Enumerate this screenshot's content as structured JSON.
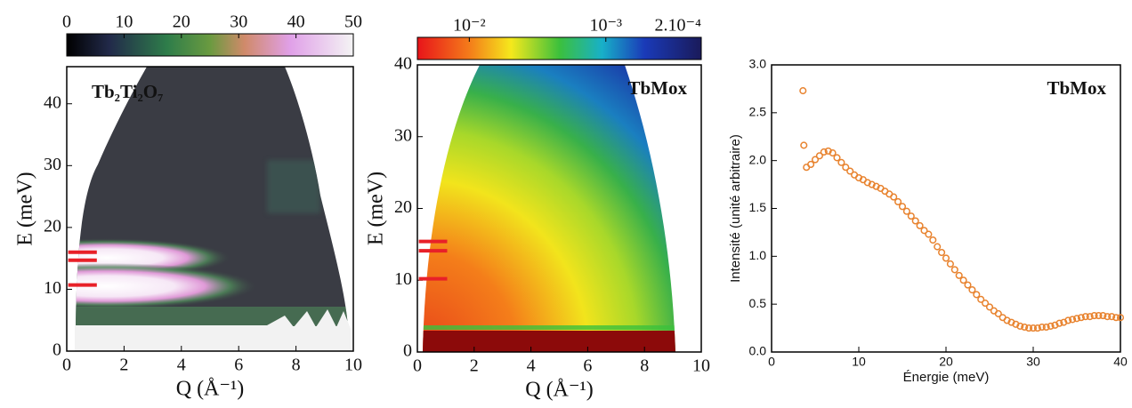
{
  "chart_data": [
    {
      "type": "heatmap",
      "annotation": "Tb₂Ti₂O₇",
      "annotation_color": "#b5121b",
      "xlabel": "Q (Å⁻¹)",
      "ylabel": "E (meV)",
      "xlim": [
        0,
        10
      ],
      "xticks": [
        0,
        2,
        4,
        6,
        8,
        10
      ],
      "ylim": [
        0,
        46
      ],
      "yticks": [
        0,
        10,
        20,
        30,
        40
      ],
      "colorbar": {
        "lim": [
          0,
          50
        ],
        "ticks": [
          0,
          10,
          20,
          30,
          40,
          50
        ],
        "log": false
      },
      "markers": [
        16,
        14.7,
        10.7
      ],
      "marker_color": "#e82028"
    },
    {
      "type": "heatmap",
      "annotation": "TbMox",
      "annotation_color": "#b5121b",
      "xlabel": "Q (Å⁻¹)",
      "ylabel": "E (meV)",
      "xlim": [
        0,
        10
      ],
      "xticks": [
        0,
        2,
        4,
        6,
        8,
        10
      ],
      "ylim": [
        0,
        40
      ],
      "yticks": [
        0,
        10,
        20,
        30,
        40
      ],
      "colorbar": {
        "lim": [
          0.024,
          0.0002
        ],
        "log": true,
        "ticks": [
          {
            "value": 0.01,
            "label": "10⁻²"
          },
          {
            "value": 0.001,
            "label": "10⁻³"
          },
          {
            "value": 0.0002,
            "label": "2.10⁻⁴"
          }
        ]
      },
      "markers": [
        15.4,
        14.1,
        10.2
      ],
      "marker_color": "#e82028"
    },
    {
      "type": "scatter",
      "annotation": "TbMox",
      "annotation_color": "#b5121b",
      "xlabel": "Énergie (meV)",
      "ylabel": "Intensité (unité arbitraire)",
      "xlim": [
        0,
        40
      ],
      "xticks": [
        0,
        10,
        20,
        30,
        40
      ],
      "ylim": [
        0,
        3
      ],
      "yticks": [
        {
          "value": 0,
          "label": "0.0"
        },
        0.5,
        {
          "value": 1,
          "label": "1.0"
        },
        1.5,
        {
          "value": 2,
          "label": "2.0"
        },
        2.5,
        {
          "value": 3,
          "label": "3.0"
        }
      ],
      "color": "#e8832f",
      "x": [
        3.6,
        3.7,
        4.0,
        4.5,
        5.0,
        5.5,
        6.0,
        6.5,
        7.0,
        7.5,
        8.0,
        8.5,
        9.0,
        9.5,
        10.0,
        10.5,
        11.0,
        11.5,
        12.0,
        12.5,
        13.0,
        13.5,
        14.0,
        14.5,
        15.0,
        15.5,
        16.0,
        16.5,
        17.0,
        17.5,
        18.0,
        18.5,
        19.0,
        19.5,
        20.0,
        20.5,
        21.0,
        21.5,
        22.0,
        22.5,
        23.0,
        23.5,
        24.0,
        24.5,
        25.0,
        25.5,
        26.0,
        26.5,
        27.0,
        27.5,
        28.0,
        28.5,
        29.0,
        29.5,
        30.0,
        30.5,
        31.0,
        31.5,
        32.0,
        32.5,
        33.0,
        33.5,
        34.0,
        34.5,
        35.0,
        35.5,
        36.0,
        36.5,
        37.0,
        37.5,
        38.0,
        38.5,
        39.0,
        39.5,
        40.0
      ],
      "values": [
        2.73,
        2.16,
        1.93,
        1.96,
        2.01,
        2.05,
        2.09,
        2.1,
        2.08,
        2.03,
        1.98,
        1.93,
        1.89,
        1.85,
        1.82,
        1.8,
        1.77,
        1.75,
        1.73,
        1.71,
        1.68,
        1.65,
        1.62,
        1.57,
        1.52,
        1.47,
        1.42,
        1.37,
        1.32,
        1.27,
        1.23,
        1.17,
        1.1,
        1.04,
        0.98,
        0.92,
        0.86,
        0.8,
        0.75,
        0.7,
        0.65,
        0.6,
        0.55,
        0.51,
        0.47,
        0.43,
        0.4,
        0.36,
        0.33,
        0.31,
        0.29,
        0.27,
        0.26,
        0.25,
        0.25,
        0.25,
        0.26,
        0.26,
        0.27,
        0.28,
        0.3,
        0.31,
        0.33,
        0.34,
        0.35,
        0.36,
        0.37,
        0.37,
        0.38,
        0.38,
        0.38,
        0.37,
        0.37,
        0.36,
        0.36
      ]
    }
  ]
}
